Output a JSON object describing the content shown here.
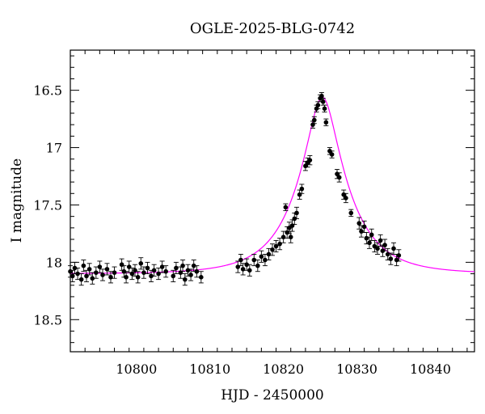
{
  "chart_data": {
    "type": "scatter",
    "title": "OGLE-2025-BLG-0742",
    "xlabel": "HJD - 2450000",
    "ylabel": "I magnitude",
    "xlim": [
      10791,
      10846
    ],
    "ylim": [
      18.78,
      16.15
    ],
    "y_inverted": true,
    "x_major_ticks": [
      10800,
      10810,
      10820,
      10830,
      10840
    ],
    "x_major_tick_labels": [
      "10800",
      "10810",
      "10820",
      "10830",
      "10840"
    ],
    "y_major_ticks": [
      16.5,
      17,
      17.5,
      18,
      18.5
    ],
    "y_major_tick_labels": [
      "16.5",
      "17",
      "17.5",
      "18",
      "18.5"
    ],
    "grid": false,
    "model": {
      "type": "paczynski",
      "t0": 10825.3,
      "u0": 0.29,
      "tE": 6.5,
      "I_base": 18.1,
      "I_peak": 16.56,
      "color": "#ff00ff"
    },
    "series": [
      {
        "marker": "filled-circle",
        "color": "#000000",
        "points": [
          [
            10791.0,
            18.08,
            0.05
          ],
          [
            10791.3,
            18.12,
            0.05
          ],
          [
            10791.6,
            18.05,
            0.05
          ],
          [
            10792.0,
            18.1,
            0.05
          ],
          [
            10792.5,
            18.15,
            0.05
          ],
          [
            10792.8,
            18.03,
            0.05
          ],
          [
            10793.2,
            18.12,
            0.05
          ],
          [
            10793.6,
            18.06,
            0.05
          ],
          [
            10794.0,
            18.14,
            0.05
          ],
          [
            10794.5,
            18.09,
            0.05
          ],
          [
            10795.0,
            18.04,
            0.05
          ],
          [
            10795.4,
            18.11,
            0.05
          ],
          [
            10796.0,
            18.06,
            0.05
          ],
          [
            10796.5,
            18.13,
            0.05
          ],
          [
            10797.0,
            18.09,
            0.05
          ],
          [
            10798.0,
            18.02,
            0.05
          ],
          [
            10798.3,
            18.08,
            0.05
          ],
          [
            10798.6,
            18.13,
            0.05
          ],
          [
            10799.0,
            18.04,
            0.05
          ],
          [
            10799.4,
            18.1,
            0.05
          ],
          [
            10799.8,
            18.07,
            0.05
          ],
          [
            10800.2,
            18.13,
            0.05
          ],
          [
            10800.6,
            18.01,
            0.05
          ],
          [
            10801.0,
            18.09,
            0.05
          ],
          [
            10801.5,
            18.05,
            0.05
          ],
          [
            10802.0,
            18.12,
            0.05
          ],
          [
            10802.4,
            18.07,
            0.05
          ],
          [
            10803.0,
            18.1,
            0.05
          ],
          [
            10803.5,
            18.04,
            0.05
          ],
          [
            10804.0,
            18.08,
            0.05
          ],
          [
            10805.0,
            18.12,
            0.05
          ],
          [
            10805.4,
            18.05,
            0.05
          ],
          [
            10806.0,
            18.09,
            0.05
          ],
          [
            10806.3,
            18.03,
            0.05
          ],
          [
            10806.6,
            18.15,
            0.05
          ],
          [
            10807.0,
            18.07,
            0.05
          ],
          [
            10807.4,
            18.11,
            0.05
          ],
          [
            10807.8,
            18.03,
            0.05
          ],
          [
            10808.2,
            18.08,
            0.05
          ],
          [
            10808.8,
            18.13,
            0.05
          ],
          [
            10813.8,
            18.04,
            0.05
          ],
          [
            10814.2,
            17.98,
            0.05
          ],
          [
            10814.5,
            18.06,
            0.05
          ],
          [
            10815.0,
            18.02,
            0.05
          ],
          [
            10815.4,
            18.07,
            0.05
          ],
          [
            10816.0,
            17.98,
            0.05
          ],
          [
            10816.5,
            18.03,
            0.05
          ],
          [
            10817.0,
            17.95,
            0.05
          ],
          [
            10817.5,
            17.98,
            0.05
          ],
          [
            10818.0,
            17.93,
            0.05
          ],
          [
            10818.5,
            17.89,
            0.05
          ],
          [
            10819.0,
            17.86,
            0.05
          ],
          [
            10819.5,
            17.84,
            0.05
          ],
          [
            10820.0,
            17.78,
            0.05
          ],
          [
            10820.3,
            17.52,
            0.03
          ],
          [
            10820.5,
            17.74,
            0.05
          ],
          [
            10820.8,
            17.7,
            0.05
          ],
          [
            10821.0,
            17.78,
            0.05
          ],
          [
            10821.2,
            17.68,
            0.05
          ],
          [
            10821.5,
            17.62,
            0.05
          ],
          [
            10821.8,
            17.57,
            0.05
          ],
          [
            10822.2,
            17.41,
            0.04
          ],
          [
            10822.5,
            17.36,
            0.04
          ],
          [
            10823.0,
            17.16,
            0.04
          ],
          [
            10823.3,
            17.13,
            0.04
          ],
          [
            10823.6,
            17.11,
            0.04
          ],
          [
            10824.0,
            16.8,
            0.03
          ],
          [
            10824.2,
            16.76,
            0.03
          ],
          [
            10824.5,
            16.66,
            0.03
          ],
          [
            10824.7,
            16.63,
            0.03
          ],
          [
            10825.0,
            16.57,
            0.03
          ],
          [
            10825.2,
            16.55,
            0.03
          ],
          [
            10825.4,
            16.6,
            0.03
          ],
          [
            10825.6,
            16.66,
            0.03
          ],
          [
            10825.8,
            16.78,
            0.03
          ],
          [
            10826.3,
            17.03,
            0.03
          ],
          [
            10826.6,
            17.06,
            0.03
          ],
          [
            10827.3,
            17.23,
            0.04
          ],
          [
            10827.6,
            17.26,
            0.04
          ],
          [
            10828.2,
            17.41,
            0.04
          ],
          [
            10828.5,
            17.44,
            0.04
          ],
          [
            10829.2,
            17.57,
            0.03
          ],
          [
            10830.3,
            17.66,
            0.05
          ],
          [
            10830.6,
            17.73,
            0.05
          ],
          [
            10831.0,
            17.69,
            0.05
          ],
          [
            10831.3,
            17.79,
            0.05
          ],
          [
            10831.7,
            17.83,
            0.05
          ],
          [
            10832.0,
            17.76,
            0.05
          ],
          [
            10832.4,
            17.86,
            0.05
          ],
          [
            10832.8,
            17.88,
            0.05
          ],
          [
            10833.2,
            17.81,
            0.05
          ],
          [
            10833.5,
            17.9,
            0.05
          ],
          [
            10833.8,
            17.85,
            0.05
          ],
          [
            10834.2,
            17.93,
            0.05
          ],
          [
            10834.6,
            17.97,
            0.05
          ],
          [
            10835.0,
            17.88,
            0.05
          ],
          [
            10835.4,
            17.98,
            0.05
          ],
          [
            10835.7,
            17.94,
            0.05
          ]
        ]
      }
    ]
  }
}
